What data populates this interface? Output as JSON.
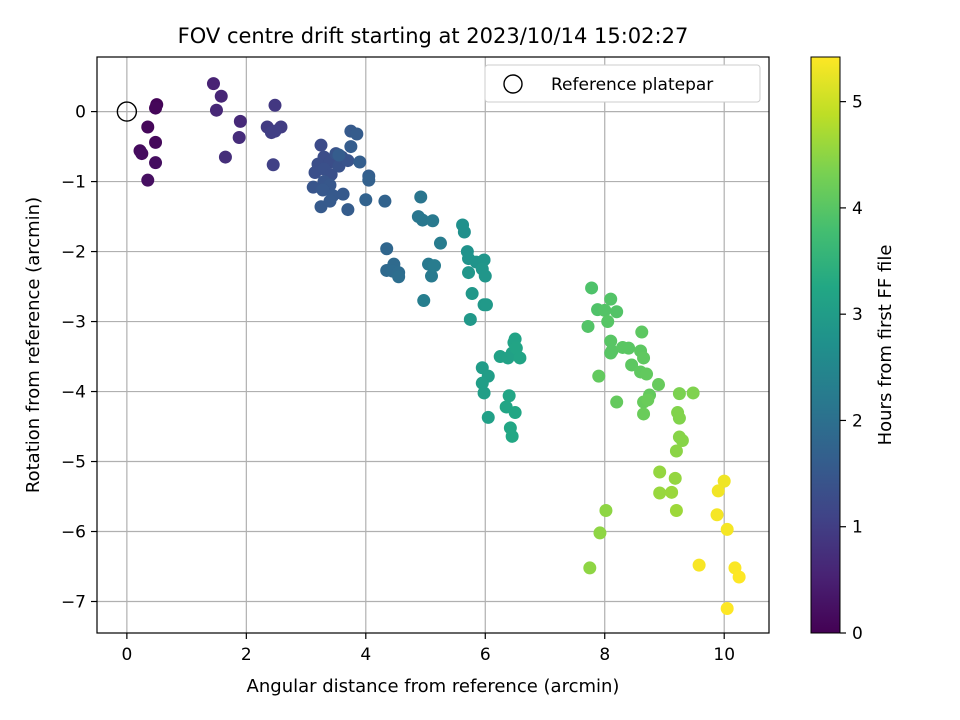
{
  "chart_data": {
    "type": "scatter",
    "title": "FOV centre drift starting at 2023/10/14 15:02:27",
    "xlabel": "Angular distance from reference (arcmin)",
    "ylabel": "Rotation from reference (arcmin)",
    "colorbar_label": "Hours from first FF file",
    "xlim": [
      -0.5,
      10.75
    ],
    "ylim": [
      -7.45,
      0.78
    ],
    "clim": [
      0,
      5.42
    ],
    "x_ticks": [
      0,
      2,
      4,
      6,
      8,
      10
    ],
    "y_ticks": [
      0,
      -1,
      -2,
      -3,
      -4,
      -5,
      -6,
      -7
    ],
    "colorbar_ticks": [
      0,
      1,
      2,
      3,
      4,
      5
    ],
    "grid": true,
    "legend": {
      "placement": "top-right",
      "entries": [
        "Reference platepar"
      ]
    },
    "colormap": "viridis",
    "reference_point": {
      "x": 0,
      "y": 0,
      "label": "Reference platepar"
    },
    "points": [
      [
        0.5,
        0.1,
        0.05
      ],
      [
        0.48,
        0.05,
        0.08
      ],
      [
        0.35,
        -0.22,
        0.1
      ],
      [
        0.48,
        -0.44,
        0.12
      ],
      [
        0.22,
        -0.56,
        0.15
      ],
      [
        0.25,
        -0.6,
        0.18
      ],
      [
        0.48,
        -0.73,
        0.2
      ],
      [
        0.35,
        -0.98,
        0.22
      ],
      [
        1.45,
        0.4,
        0.55
      ],
      [
        1.58,
        0.22,
        0.6
      ],
      [
        1.5,
        0.02,
        0.62
      ],
      [
        1.9,
        -0.14,
        0.65
      ],
      [
        1.88,
        -0.37,
        0.7
      ],
      [
        1.65,
        -0.65,
        0.72
      ],
      [
        2.48,
        0.09,
        0.9
      ],
      [
        2.35,
        -0.22,
        0.95
      ],
      [
        2.58,
        -0.22,
        0.98
      ],
      [
        2.42,
        -0.3,
        1.0
      ],
      [
        2.48,
        -0.28,
        1.02
      ],
      [
        2.45,
        -0.76,
        1.05
      ],
      [
        3.25,
        -0.48,
        1.25
      ],
      [
        3.3,
        -0.65,
        1.28
      ],
      [
        3.2,
        -0.75,
        1.3
      ],
      [
        3.4,
        -0.72,
        1.3
      ],
      [
        3.15,
        -0.87,
        1.32
      ],
      [
        3.3,
        -0.82,
        1.35
      ],
      [
        3.42,
        -0.9,
        1.35
      ],
      [
        3.55,
        -0.78,
        1.38
      ],
      [
        3.6,
        -0.65,
        1.4
      ],
      [
        3.5,
        -0.6,
        1.4
      ],
      [
        3.7,
        -0.7,
        1.42
      ],
      [
        3.3,
        -1.0,
        1.45
      ],
      [
        3.12,
        -1.08,
        1.45
      ],
      [
        3.4,
        -1.05,
        1.48
      ],
      [
        3.28,
        -1.12,
        1.5
      ],
      [
        3.45,
        -1.2,
        1.52
      ],
      [
        3.62,
        -1.18,
        1.52
      ],
      [
        3.4,
        -1.28,
        1.55
      ],
      [
        3.25,
        -1.36,
        1.55
      ],
      [
        3.7,
        -1.4,
        1.58
      ],
      [
        3.75,
        -0.28,
        1.55
      ],
      [
        3.85,
        -0.32,
        1.58
      ],
      [
        3.75,
        -0.5,
        1.6
      ],
      [
        3.9,
        -0.72,
        1.62
      ],
      [
        3.55,
        -0.62,
        1.6
      ],
      [
        4.05,
        -0.92,
        1.65
      ],
      [
        4.05,
        -0.98,
        1.68
      ],
      [
        4.0,
        -1.26,
        1.7
      ],
      [
        4.32,
        -1.28,
        1.72
      ],
      [
        4.35,
        -1.96,
        1.8
      ],
      [
        4.35,
        -2.27,
        1.85
      ],
      [
        4.47,
        -2.18,
        1.88
      ],
      [
        4.45,
        -2.28,
        1.9
      ],
      [
        4.55,
        -2.3,
        1.92
      ],
      [
        4.55,
        -2.36,
        1.95
      ],
      [
        4.92,
        -1.22,
        2.1
      ],
      [
        4.88,
        -1.5,
        2.12
      ],
      [
        4.95,
        -1.55,
        2.15
      ],
      [
        5.12,
        -1.56,
        2.18
      ],
      [
        5.05,
        -2.18,
        2.2
      ],
      [
        5.1,
        -2.35,
        2.22
      ],
      [
        5.25,
        -1.88,
        2.25
      ],
      [
        5.15,
        -2.2,
        2.25
      ],
      [
        4.97,
        -2.7,
        2.3
      ],
      [
        5.62,
        -1.62,
        2.7
      ],
      [
        5.65,
        -1.72,
        2.72
      ],
      [
        5.7,
        -2.0,
        2.75
      ],
      [
        5.72,
        -2.1,
        2.78
      ],
      [
        5.85,
        -2.15,
        2.8
      ],
      [
        5.98,
        -2.12,
        2.82
      ],
      [
        5.95,
        -2.25,
        2.85
      ],
      [
        6.0,
        -2.35,
        2.85
      ],
      [
        5.72,
        -2.3,
        2.85
      ],
      [
        5.78,
        -2.6,
        2.88
      ],
      [
        5.75,
        -2.97,
        2.9
      ],
      [
        5.98,
        -2.76,
        2.9
      ],
      [
        6.02,
        -2.76,
        2.92
      ],
      [
        5.95,
        -3.66,
        3.0
      ],
      [
        6.05,
        -3.78,
        3.02
      ],
      [
        5.95,
        -3.88,
        3.05
      ],
      [
        5.98,
        -4.02,
        3.05
      ],
      [
        6.05,
        -4.37,
        3.08
      ],
      [
        6.25,
        -3.5,
        3.1
      ],
      [
        6.38,
        -3.52,
        3.12
      ],
      [
        6.45,
        -3.45,
        3.12
      ],
      [
        6.5,
        -3.25,
        3.15
      ],
      [
        6.48,
        -3.3,
        3.15
      ],
      [
        6.52,
        -3.38,
        3.18
      ],
      [
        6.58,
        -3.52,
        3.18
      ],
      [
        6.4,
        -4.06,
        3.2
      ],
      [
        6.35,
        -4.22,
        3.2
      ],
      [
        6.5,
        -4.3,
        3.22
      ],
      [
        6.42,
        -4.52,
        3.22
      ],
      [
        6.45,
        -4.64,
        3.25
      ],
      [
        7.78,
        -2.52,
        3.9
      ],
      [
        7.88,
        -2.83,
        3.92
      ],
      [
        8.0,
        -2.84,
        3.95
      ],
      [
        8.1,
        -2.68,
        3.95
      ],
      [
        8.2,
        -2.86,
        3.95
      ],
      [
        7.72,
        -3.07,
        3.95
      ],
      [
        8.05,
        -3.0,
        3.98
      ],
      [
        8.1,
        -3.28,
        4.0
      ],
      [
        8.1,
        -3.45,
        4.0
      ],
      [
        8.12,
        -3.42,
        4.0
      ],
      [
        8.3,
        -3.37,
        4.02
      ],
      [
        8.4,
        -3.38,
        4.02
      ],
      [
        8.45,
        -3.62,
        4.05
      ],
      [
        8.6,
        -3.42,
        4.05
      ],
      [
        8.62,
        -3.15,
        4.05
      ],
      [
        8.65,
        -3.52,
        4.08
      ],
      [
        8.6,
        -3.72,
        4.08
      ],
      [
        8.7,
        -3.75,
        4.1
      ],
      [
        7.9,
        -3.78,
        4.1
      ],
      [
        8.2,
        -4.15,
        4.12
      ],
      [
        8.75,
        -4.05,
        4.12
      ],
      [
        8.9,
        -3.9,
        4.15
      ],
      [
        8.65,
        -4.15,
        4.15
      ],
      [
        8.72,
        -4.12,
        4.18
      ],
      [
        8.65,
        -4.32,
        4.18
      ],
      [
        9.25,
        -4.03,
        4.35
      ],
      [
        9.48,
        -4.02,
        4.38
      ],
      [
        9.22,
        -4.3,
        4.4
      ],
      [
        9.25,
        -4.38,
        4.4
      ],
      [
        9.25,
        -4.65,
        4.45
      ],
      [
        9.3,
        -4.7,
        4.45
      ],
      [
        9.2,
        -4.85,
        4.48
      ],
      [
        9.18,
        -5.24,
        4.55
      ],
      [
        8.92,
        -5.15,
        4.55
      ],
      [
        8.92,
        -5.45,
        4.58
      ],
      [
        9.12,
        -5.44,
        4.6
      ],
      [
        9.2,
        -5.7,
        4.62
      ],
      [
        8.02,
        -5.7,
        4.5
      ],
      [
        7.92,
        -6.02,
        4.5
      ],
      [
        7.75,
        -6.52,
        4.5
      ],
      [
        10.0,
        -5.28,
        5.3
      ],
      [
        9.9,
        -5.42,
        5.32
      ],
      [
        9.88,
        -5.76,
        5.35
      ],
      [
        10.05,
        -5.97,
        5.35
      ],
      [
        9.58,
        -6.48,
        5.38
      ],
      [
        10.18,
        -6.52,
        5.4
      ],
      [
        10.25,
        -6.65,
        5.42
      ],
      [
        10.05,
        -7.1,
        5.42
      ]
    ]
  }
}
